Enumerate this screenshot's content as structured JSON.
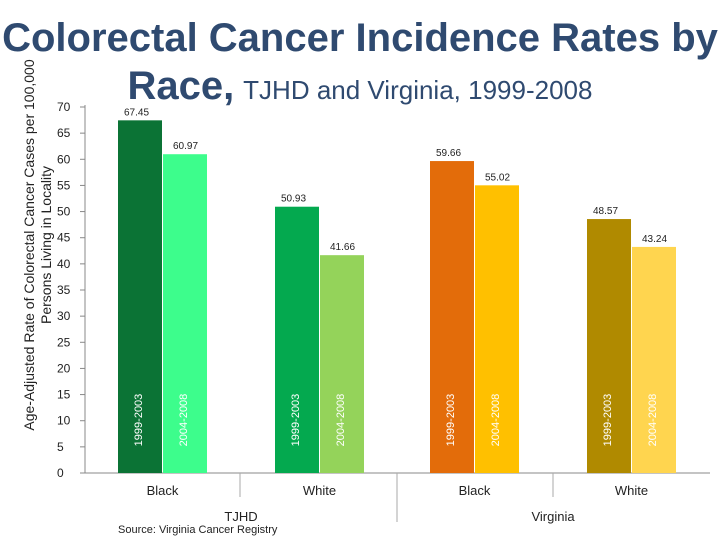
{
  "title": {
    "line1": "Colorectal Cancer Incidence Rates by",
    "line2_main": "Race,",
    "line2_sub": "TJHD and Virginia, 1999-2008"
  },
  "source": "Source: Virginia Cancer Registry",
  "chart_data": {
    "type": "bar",
    "title": "Colorectal Cancer Incidence Rates by Race, TJHD and Virginia, 1999-2008",
    "ylabel": "Age-Adjusted Rate of Colorectal Cancer Cases per 100,000 Persons Living in Locality",
    "xlabel": "",
    "ylim": [
      0,
      70
    ],
    "yticks": [
      0,
      5,
      10,
      15,
      20,
      25,
      30,
      35,
      40,
      45,
      50,
      55,
      60,
      65,
      70
    ],
    "grid": false,
    "groups": [
      {
        "region": "TJHD",
        "race": "Black",
        "bars": [
          {
            "period": "1999-2003",
            "value": 67.45,
            "label": "67.45",
            "color": "#0b7335"
          },
          {
            "period": "2004-2008",
            "value": 60.97,
            "label": "60.97",
            "color": "#3dfd8c"
          }
        ]
      },
      {
        "region": "TJHD",
        "race": "White",
        "bars": [
          {
            "period": "1999-2003",
            "value": 50.93,
            "label": "50.93",
            "color": "#04a94f"
          },
          {
            "period": "2004-2008",
            "value": 41.66,
            "label": "41.66",
            "color": "#94d35a"
          }
        ]
      },
      {
        "region": "Virginia",
        "race": "Black",
        "bars": [
          {
            "period": "1999-2003",
            "value": 59.66,
            "label": "59.66",
            "color": "#e36c0a"
          },
          {
            "period": "2004-2008",
            "value": 55.02,
            "label": "55.02",
            "color": "#ffc000"
          }
        ]
      },
      {
        "region": "Virginia",
        "race": "White",
        "bars": [
          {
            "period": "1999-2003",
            "value": 48.57,
            "label": "48.57",
            "color": "#b08a00"
          },
          {
            "period": "2004-2008",
            "value": 43.24,
            "label": "43.24",
            "color": "#ffd54f"
          }
        ]
      }
    ],
    "regions": [
      "TJHD",
      "Virginia"
    ]
  }
}
